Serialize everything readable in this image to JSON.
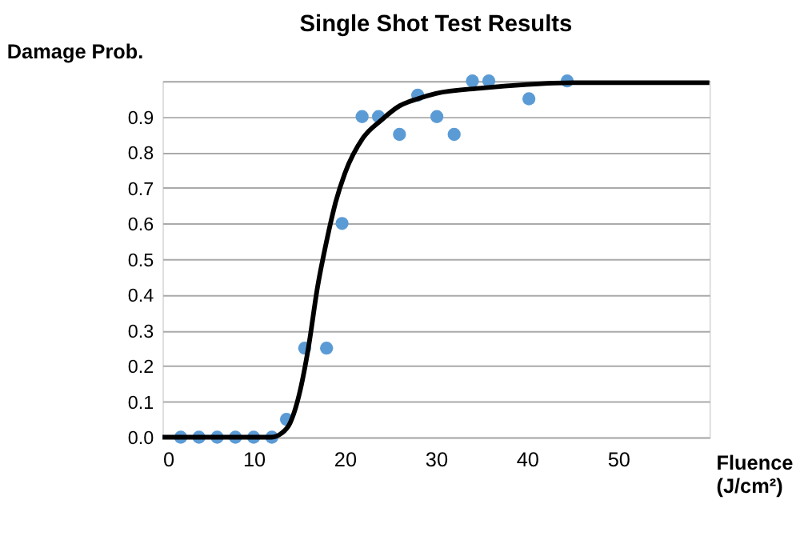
{
  "chart_data": {
    "type": "scatter",
    "title": "Single Shot Test Results",
    "xlabel": "Fluence (J/cm²)",
    "ylabel": "Damage Prob.",
    "xlim": [
      0,
      60
    ],
    "xticks": [
      0,
      10,
      20,
      30,
      40,
      50
    ],
    "ylim": [
      0,
      1
    ],
    "yticks": [
      {
        "value": 0,
        "label": "0.0"
      },
      0.1,
      0.2,
      0.3,
      0.4,
      0.5,
      0.6,
      0.7,
      0.8,
      0.9,
      {
        "value": 1,
        "label": null
      }
    ],
    "grid": "y",
    "marker": "circle",
    "series": [
      {
        "color": "#5b9bd5",
        "x": [
          2,
          4,
          6,
          8,
          10,
          12,
          13.6,
          15.6,
          18,
          19.7,
          21.9,
          23.7,
          26,
          28,
          30.1,
          32,
          34,
          35.8,
          40.2,
          44.4
        ],
        "values": [
          0,
          0,
          0,
          0,
          0,
          0,
          0.05,
          0.25,
          0.25,
          0.6,
          0.9,
          0.9,
          0.85,
          0.96,
          0.9,
          0.85,
          1.0,
          1.0,
          0.95,
          1.0
        ]
      },
      {
        "type": "line",
        "color": "#000000",
        "marker": "none",
        "line_style": "solid",
        "x": [
          0,
          12,
          13,
          14,
          15,
          16,
          17,
          18,
          19,
          20,
          22,
          24,
          26,
          28,
          30,
          35,
          40,
          45,
          60
        ],
        "values": [
          0,
          0,
          0.01,
          0.04,
          0.12,
          0.25,
          0.42,
          0.55,
          0.66,
          0.74,
          0.84,
          0.89,
          0.93,
          0.95,
          0.965,
          0.98,
          0.99,
          0.995,
          0.995
        ]
      }
    ]
  }
}
